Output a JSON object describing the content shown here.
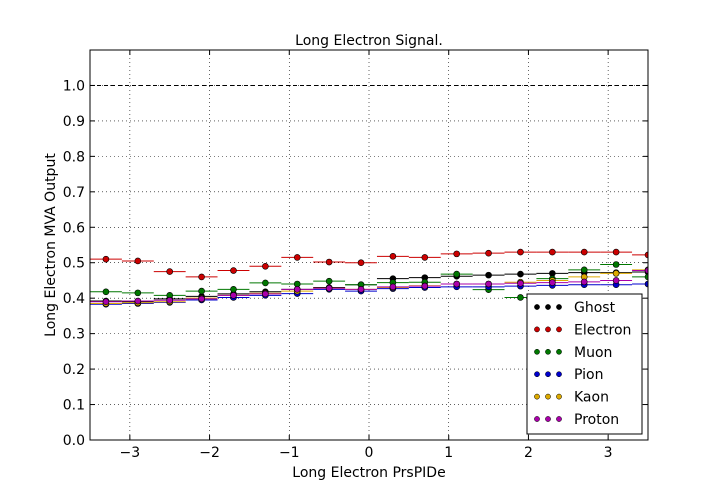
{
  "chart_data": {
    "type": "scatter",
    "title": "Long Electron Signal.",
    "xlabel": "Long Electron PrsPIDe",
    "ylabel": "Long Electron MVA Output",
    "xlim": [
      -3.5,
      3.5
    ],
    "ylim": [
      0.0,
      1.1
    ],
    "xticks": [
      -3,
      -2,
      -1,
      0,
      1,
      2,
      3
    ],
    "xtick_labels": [
      "−3",
      "−2",
      "−1",
      "0",
      "1",
      "2",
      "3"
    ],
    "yticks": [
      0.0,
      0.1,
      0.2,
      0.3,
      0.4,
      0.5,
      0.6,
      0.7,
      0.8,
      0.9,
      1.0
    ],
    "ytick_labels": [
      "0.0",
      "0.1",
      "0.2",
      "0.3",
      "0.4",
      "0.5",
      "0.6",
      "0.7",
      "0.8",
      "0.9",
      "1.0"
    ],
    "grid": true,
    "reference_line": 1.0,
    "legend_position": "lower-right",
    "x": [
      -3.3,
      -2.9,
      -2.5,
      -2.1,
      -1.7,
      -1.3,
      -0.9,
      -0.5,
      -0.1,
      0.3,
      0.7,
      1.1,
      1.5,
      1.9,
      2.3,
      2.7,
      3.1,
      3.5
    ],
    "x_halfwidth": 0.2,
    "series": [
      {
        "name": "Ghost",
        "color": "#000000",
        "values": [
          0.392,
          0.39,
          0.398,
          0.405,
          0.412,
          0.418,
          0.425,
          0.43,
          0.438,
          0.455,
          0.458,
          0.462,
          0.465,
          0.468,
          0.47,
          0.472,
          0.472,
          0.474
        ]
      },
      {
        "name": "Electron",
        "color": "#cc0000",
        "values": [
          0.51,
          0.505,
          0.475,
          0.46,
          0.478,
          0.49,
          0.515,
          0.502,
          0.5,
          0.518,
          0.515,
          0.525,
          0.527,
          0.53,
          0.53,
          0.53,
          0.53,
          0.522
        ]
      },
      {
        "name": "Muon",
        "color": "#007700",
        "values": [
          0.418,
          0.415,
          0.408,
          0.42,
          0.425,
          0.443,
          0.44,
          0.448,
          0.438,
          0.444,
          0.445,
          0.468,
          0.424,
          0.402,
          0.455,
          0.48,
          0.495,
          0.46
        ]
      },
      {
        "name": "Pion",
        "color": "#0000cc",
        "values": [
          0.383,
          0.385,
          0.388,
          0.395,
          0.402,
          0.408,
          0.413,
          0.425,
          0.42,
          0.427,
          0.43,
          0.432,
          0.432,
          0.434,
          0.436,
          0.438,
          0.438,
          0.44
        ]
      },
      {
        "name": "Kaon",
        "color": "#ddaa00",
        "values": [
          0.385,
          0.387,
          0.39,
          0.4,
          0.408,
          0.414,
          0.42,
          0.428,
          0.425,
          0.43,
          0.435,
          0.44,
          0.44,
          0.445,
          0.45,
          0.46,
          0.47,
          0.48
        ]
      },
      {
        "name": "Proton",
        "color": "#aa00aa",
        "values": [
          0.39,
          0.392,
          0.394,
          0.398,
          0.408,
          0.412,
          0.425,
          0.428,
          0.425,
          0.432,
          0.434,
          0.44,
          0.44,
          0.442,
          0.444,
          0.446,
          0.45,
          0.478
        ]
      }
    ]
  }
}
